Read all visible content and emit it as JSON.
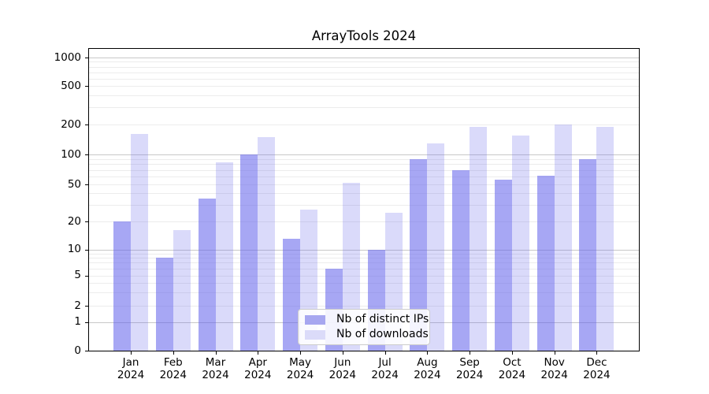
{
  "chart_data": {
    "type": "bar",
    "title": "ArrayTools 2024",
    "categories": [
      "Jan",
      "Feb",
      "Mar",
      "Apr",
      "May",
      "Jun",
      "Jul",
      "Aug",
      "Sep",
      "Oct",
      "Nov",
      "Dec"
    ],
    "category_year_line": "2024",
    "series": [
      {
        "name": "Nb of distinct IPs",
        "color": "rgba(100,100,235,0.57)",
        "values": [
          20,
          8,
          35,
          100,
          13,
          6,
          10,
          90,
          70,
          56,
          61,
          90
        ]
      },
      {
        "name": "Nb of downloads",
        "color": "rgba(100,100,235,0.24)",
        "values": [
          160,
          16,
          83,
          150,
          27,
          52,
          25,
          130,
          190,
          155,
          200,
          191
        ]
      }
    ],
    "yscale": "symlog",
    "yticks": [
      0,
      1,
      2,
      5,
      10,
      20,
      50,
      100,
      200,
      500,
      1000
    ],
    "ylim": [
      0,
      1200
    ],
    "grid": "major lines at powers of ten, faint log minor lines",
    "legend_position": "lower center inside axes"
  },
  "colors": {
    "ips_bar_rendered": "#a7a7f0",
    "downloads_bar_rendered": "#dbdbf9",
    "grid_major": "#c8c8c8",
    "grid_minor": "#ececec",
    "axis_line": "#000000",
    "legend_border": "#cccccc",
    "background": "#ffffff",
    "text": "#000000"
  }
}
